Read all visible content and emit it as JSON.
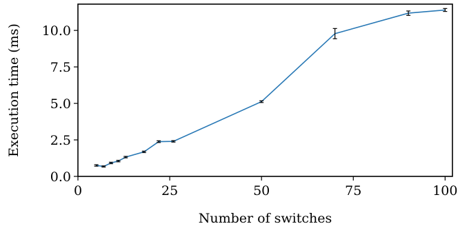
{
  "chart_data": {
    "type": "line",
    "xlabel": "Number of switches",
    "ylabel": "Execution time (ms)",
    "xlim": [
      0,
      102
    ],
    "ylim": [
      0,
      11.8
    ],
    "xticks": [
      0,
      25,
      50,
      75,
      100
    ],
    "yticks": [
      0.0,
      2.5,
      5.0,
      7.5,
      10.0
    ],
    "xtick_labels": [
      "0",
      "25",
      "50",
      "75",
      "100"
    ],
    "ytick_labels": [
      "0.0",
      "2.5",
      "5.0",
      "7.5",
      "10.0"
    ],
    "grid": false,
    "series": [
      {
        "color": "#2878b5",
        "x": [
          5,
          7,
          9,
          11,
          13,
          18,
          22,
          26,
          50,
          70,
          90,
          100
        ],
        "y": [
          0.75,
          0.68,
          0.92,
          1.05,
          1.32,
          1.68,
          2.38,
          2.4,
          5.12,
          9.78,
          11.18,
          11.4
        ],
        "err": [
          0.05,
          0.04,
          0.05,
          0.05,
          0.05,
          0.05,
          0.06,
          0.05,
          0.06,
          0.35,
          0.15,
          0.1
        ]
      }
    ]
  }
}
